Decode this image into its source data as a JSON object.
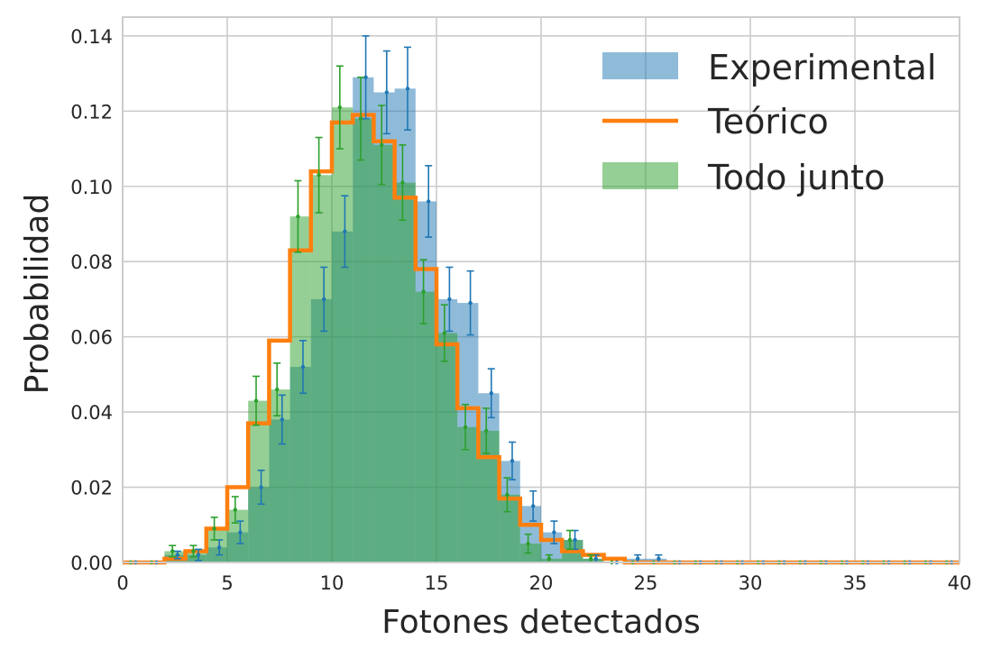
{
  "chart_data": {
    "type": "bar",
    "xlabel": "Fotones detectados",
    "ylabel": "Probabilidad",
    "xlim": [
      0,
      40
    ],
    "ylim": [
      0,
      0.145
    ],
    "grid": true,
    "legend_position": "top-right",
    "xticks": [
      0,
      5,
      10,
      15,
      20,
      25,
      30,
      35,
      40
    ],
    "yticks": [
      0.0,
      0.02,
      0.04,
      0.06,
      0.08,
      0.1,
      0.12,
      0.14
    ],
    "bin_edges": [
      0,
      1,
      2,
      3,
      4,
      5,
      6,
      7,
      8,
      9,
      10,
      11,
      12,
      13,
      14,
      15,
      16,
      17,
      18,
      19,
      20,
      21,
      22,
      23,
      24,
      25,
      26,
      27,
      28,
      29,
      30,
      31,
      32,
      33,
      34,
      35,
      36,
      37,
      38,
      39,
      40
    ],
    "series": [
      {
        "name": "Experimental",
        "kind": "histogram",
        "color": "#1f77b4",
        "values": [
          0,
          0,
          0.002,
          0.002,
          0.004,
          0.008,
          0.02,
          0.038,
          0.052,
          0.07,
          0.088,
          0.129,
          0.125,
          0.126,
          0.096,
          0.07,
          0.069,
          0.045,
          0.027,
          0.015,
          0.008,
          0.006,
          0.001,
          0,
          0.001,
          0.001,
          0,
          0,
          0,
          0,
          0,
          0,
          0,
          0,
          0,
          0,
          0,
          0,
          0,
          0
        ],
        "errors": [
          0,
          0,
          0.001,
          0.0015,
          0.002,
          0.003,
          0.0045,
          0.0065,
          0.007,
          0.0085,
          0.0095,
          0.011,
          0.011,
          0.011,
          0.0095,
          0.0085,
          0.0085,
          0.0065,
          0.005,
          0.004,
          0.003,
          0.0025,
          0.001,
          0,
          0.001,
          0.001,
          0,
          0,
          0,
          0,
          0,
          0,
          0,
          0,
          0,
          0,
          0,
          0,
          0,
          0
        ]
      },
      {
        "name": "Teórico",
        "kind": "step",
        "color": "#ff7f0e",
        "values": [
          0,
          0,
          0.001,
          0.003,
          0.009,
          0.02,
          0.037,
          0.059,
          0.083,
          0.104,
          0.117,
          0.119,
          0.112,
          0.097,
          0.078,
          0.058,
          0.041,
          0.028,
          0.017,
          0.01,
          0.006,
          0.003,
          0.002,
          0.001,
          0,
          0,
          0,
          0,
          0,
          0,
          0,
          0,
          0,
          0,
          0,
          0,
          0,
          0,
          0,
          0
        ]
      },
      {
        "name": "Todo junto",
        "kind": "histogram",
        "color": "#2ca02c",
        "values": [
          0,
          0,
          0.003,
          0.003,
          0.009,
          0.014,
          0.043,
          0.046,
          0.092,
          0.103,
          0.121,
          0.118,
          0.111,
          0.101,
          0.072,
          0.061,
          0.036,
          0.035,
          0.018,
          0.005,
          0.001,
          0.006,
          0.001,
          0,
          0,
          0,
          0,
          0,
          0,
          0,
          0,
          0,
          0,
          0,
          0,
          0,
          0,
          0,
          0,
          0
        ],
        "errors": [
          0,
          0,
          0.0015,
          0.0015,
          0.003,
          0.0035,
          0.0065,
          0.007,
          0.0095,
          0.01,
          0.011,
          0.011,
          0.0105,
          0.01,
          0.0085,
          0.0075,
          0.006,
          0.006,
          0.0045,
          0.0025,
          0.001,
          0.0025,
          0.001,
          0,
          0,
          0,
          0,
          0,
          0,
          0,
          0,
          0,
          0,
          0,
          0,
          0,
          0,
          0,
          0,
          0
        ]
      }
    ]
  }
}
